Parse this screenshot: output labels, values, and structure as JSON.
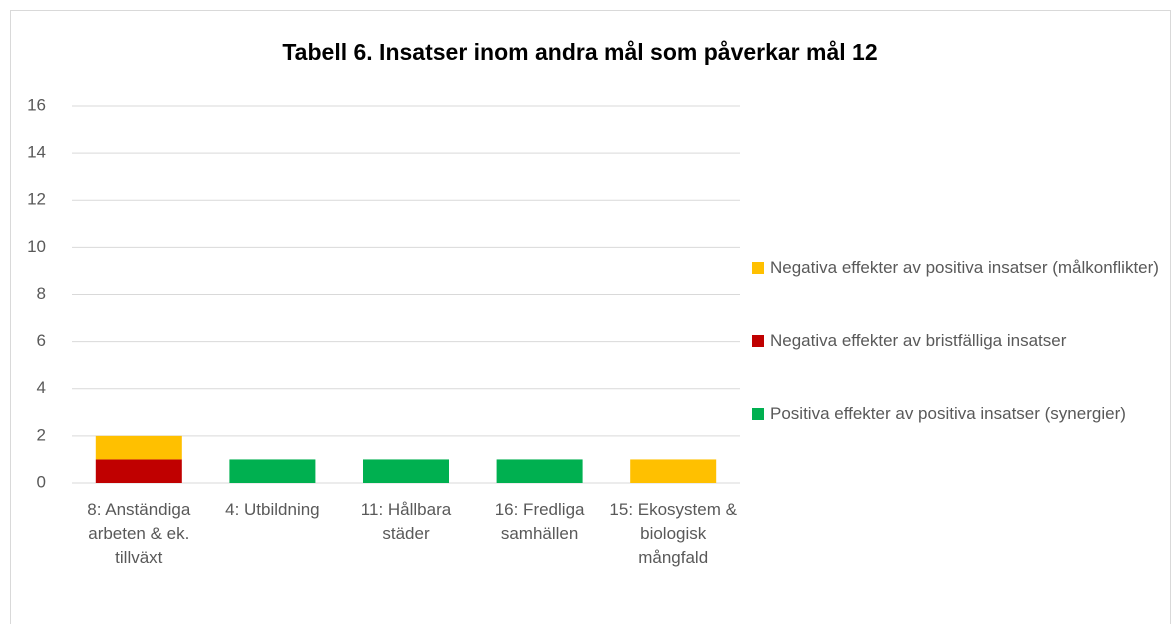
{
  "chart_data": {
    "type": "bar",
    "stacked": true,
    "title": "Tabell 6. Insatser inom andra mål som påverkar mål 12",
    "categories": [
      "8: Anständiga arbeten & ek. tillväxt",
      "4: Utbildning",
      "11: Hållbara städer",
      "16: Fredliga samhällen",
      "15: Ekosystem & biologisk mångfald"
    ],
    "series": [
      {
        "name": "Positiva effekter av positiva insatser (synergier)",
        "color": "#00b050",
        "values": [
          0,
          1,
          1,
          1,
          0
        ]
      },
      {
        "name": "Negativa effekter av bristfälliga insatser",
        "color": "#c00000",
        "values": [
          1,
          0,
          0,
          0,
          0
        ]
      },
      {
        "name": "Negativa effekter av positiva insatser (målkonflikter)",
        "color": "#ffc000",
        "values": [
          1,
          0,
          0,
          0,
          1
        ]
      }
    ],
    "ylim": [
      0,
      16
    ],
    "yticks": [
      0,
      2,
      4,
      6,
      8,
      10,
      12,
      14,
      16
    ],
    "grid": true,
    "legend": "right"
  }
}
